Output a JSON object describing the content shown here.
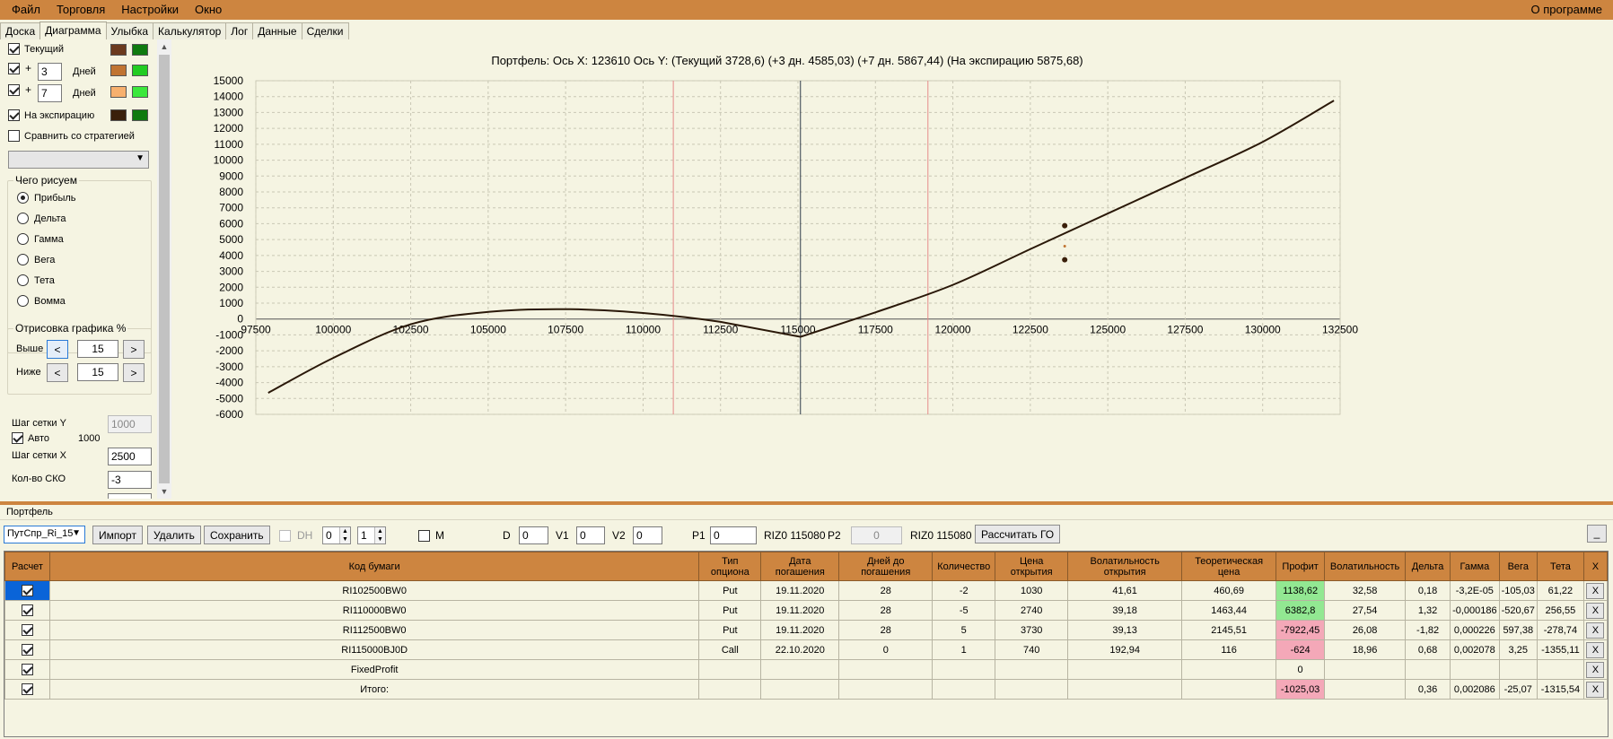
{
  "menu": {
    "items": [
      "Файл",
      "Торговля",
      "Настройки",
      "Окно"
    ],
    "about": "О программе"
  },
  "tabs": [
    "Доска",
    "Диаграмма",
    "Улыбка",
    "Калькулятор",
    "Лог",
    "Данные",
    "Сделки"
  ],
  "active_tab": "Диаграмма",
  "left": {
    "current_label": "Текущий",
    "plus1": "+",
    "days1": "3",
    "days_label": "Дней",
    "plus2": "+",
    "days2": "7",
    "expiry_label": "На экспирацию",
    "compare_label": "Сравнить со стратегией",
    "what_draw": {
      "title": "Чего рисуем",
      "options": [
        "Прибыль",
        "Дельта",
        "Гамма",
        "Вега",
        "Тета",
        "Вомма"
      ],
      "selected": "Прибыль"
    },
    "draw_pct": {
      "title": "Отрисовка графика %",
      "above_label": "Выше",
      "above_value": "15",
      "below_label": "Ниже",
      "below_value": "15",
      "left_btn": "<",
      "right_btn": ">"
    },
    "grid_step_y_label": "Шаг сетки Y",
    "grid_step_y_value": "1000",
    "auto_label": "Авто",
    "auto_value": "1000",
    "grid_step_x_label": "Шаг сетки X",
    "grid_step_x_value": "2500",
    "sko_label": "Кол-во СКО",
    "sko_value": "-3"
  },
  "colors": {
    "current": [
      "#6b3a1e",
      "#0f7a0f"
    ],
    "plus1": [
      "#c07432",
      "#22cc22"
    ],
    "plus2": [
      "#f7b06e",
      "#3ce83c"
    ],
    "expiry": [
      "#3a1f0a",
      "#0f7a0f"
    ],
    "accent": "#cd8540"
  },
  "chart_data": {
    "type": "line",
    "title": "Портфель: Ось X: 123610 Ось Y:  (Текущий 3728,6)  (+3 дн. 4585,03)  (+7 дн. 5867,44)  (На экспирацию 5875,68)",
    "xlim": [
      97500,
      132500
    ],
    "ylim": [
      -6000,
      15000
    ],
    "x_ticks": [
      "97500",
      "100000",
      "102500",
      "105000",
      "107500",
      "110000",
      "112500",
      "115000",
      "117500",
      "120000",
      "122500",
      "125000",
      "127500",
      "130000",
      "132500"
    ],
    "y_ticks": [
      "15000",
      "14000",
      "13000",
      "12000",
      "11000",
      "10000",
      "9000",
      "8000",
      "7000",
      "6000",
      "5000",
      "4000",
      "3000",
      "2000",
      "1000",
      "0",
      "-1000",
      "-2000",
      "-3000",
      "-4000",
      "-5000",
      "-6000"
    ],
    "red_lines_x": [
      110976,
      119195
    ],
    "current_price_x": 115080,
    "series": [
      {
        "x": [
          97900,
          100000,
          102500,
          105000,
          107500,
          110000,
          112500,
          115080,
          117500,
          120000,
          122500,
          125000,
          127500,
          130000,
          132300
        ],
        "values": [
          -4650,
          -2450,
          -330,
          450,
          620,
          380,
          -180,
          -1120,
          420,
          2150,
          4400,
          6640,
          8880,
          11150,
          13750
        ]
      }
    ],
    "markers": [
      {
        "x": 123610,
        "y": 5876
      },
      {
        "x": 123610,
        "y": 4585
      },
      {
        "x": 123610,
        "y": 3729
      }
    ]
  },
  "portfolio": {
    "label": "Портфель",
    "selector": "ПутСпр_Ri_15",
    "import_btn": "Импорт",
    "delete_btn": "Удалить",
    "save_btn": "Сохранить",
    "dh_label": "DH",
    "spin1": "0",
    "spin2": "1",
    "m_label": "M",
    "d_label": "D",
    "d_value": "0",
    "v1_label": "V1",
    "v1_value": "0",
    "v2_label": "V2",
    "v2_value": "0",
    "p1_label": "P1",
    "p1_value": "0",
    "riz1": "RIZ0 115080",
    "p2_label": "P2",
    "p2_value": "0",
    "riz2": "RIZ0 115080",
    "calc_btn": "Рассчитать ГО",
    "min_btn": "_"
  },
  "table": {
    "headers": [
      "Расчет",
      "Код бумаги",
      "Тип опциона",
      "Дата погашения",
      "Дней до погашения",
      "Количество",
      "Цена открытия",
      "Волатильность открытия",
      "Теоретическая цена",
      "Профит",
      "Волатильность",
      "Дельта",
      "Гамма",
      "Вега",
      "Тета",
      "X"
    ],
    "rows": [
      [
        "RI102500BW0",
        "Put",
        "19.11.2020",
        "28",
        "-2",
        "1030",
        "41,61",
        "460,69",
        "1138,62",
        "32,58",
        "0,18",
        "-3,2E-05",
        "-105,03",
        "61,22",
        "X"
      ],
      [
        "RI110000BW0",
        "Put",
        "19.11.2020",
        "28",
        "-5",
        "2740",
        "39,18",
        "1463,44",
        "6382,8",
        "27,54",
        "1,32",
        "-0,000186",
        "-520,67",
        "256,55",
        "X"
      ],
      [
        "RI112500BW0",
        "Put",
        "19.11.2020",
        "28",
        "5",
        "3730",
        "39,13",
        "2145,51",
        "-7922,45",
        "26,08",
        "-1,82",
        "0,000226",
        "597,38",
        "-278,74",
        "X"
      ],
      [
        "RI115000BJ0D",
        "Call",
        "22.10.2020",
        "0",
        "1",
        "740",
        "192,94",
        "116",
        "-624",
        "18,96",
        "0,68",
        "0,002078",
        "3,25",
        "-1355,11",
        "X"
      ],
      [
        "FixedProfit",
        "",
        "",
        "",
        "",
        "",
        "",
        "",
        "0",
        "",
        "",
        "",
        "",
        "",
        "X"
      ],
      [
        "Итого:",
        "",
        "",
        "",
        "",
        "",
        "",
        "",
        "-1025,03",
        "",
        "0,36",
        "0,002086",
        "-25,07",
        "-1315,54",
        "X"
      ]
    ]
  }
}
